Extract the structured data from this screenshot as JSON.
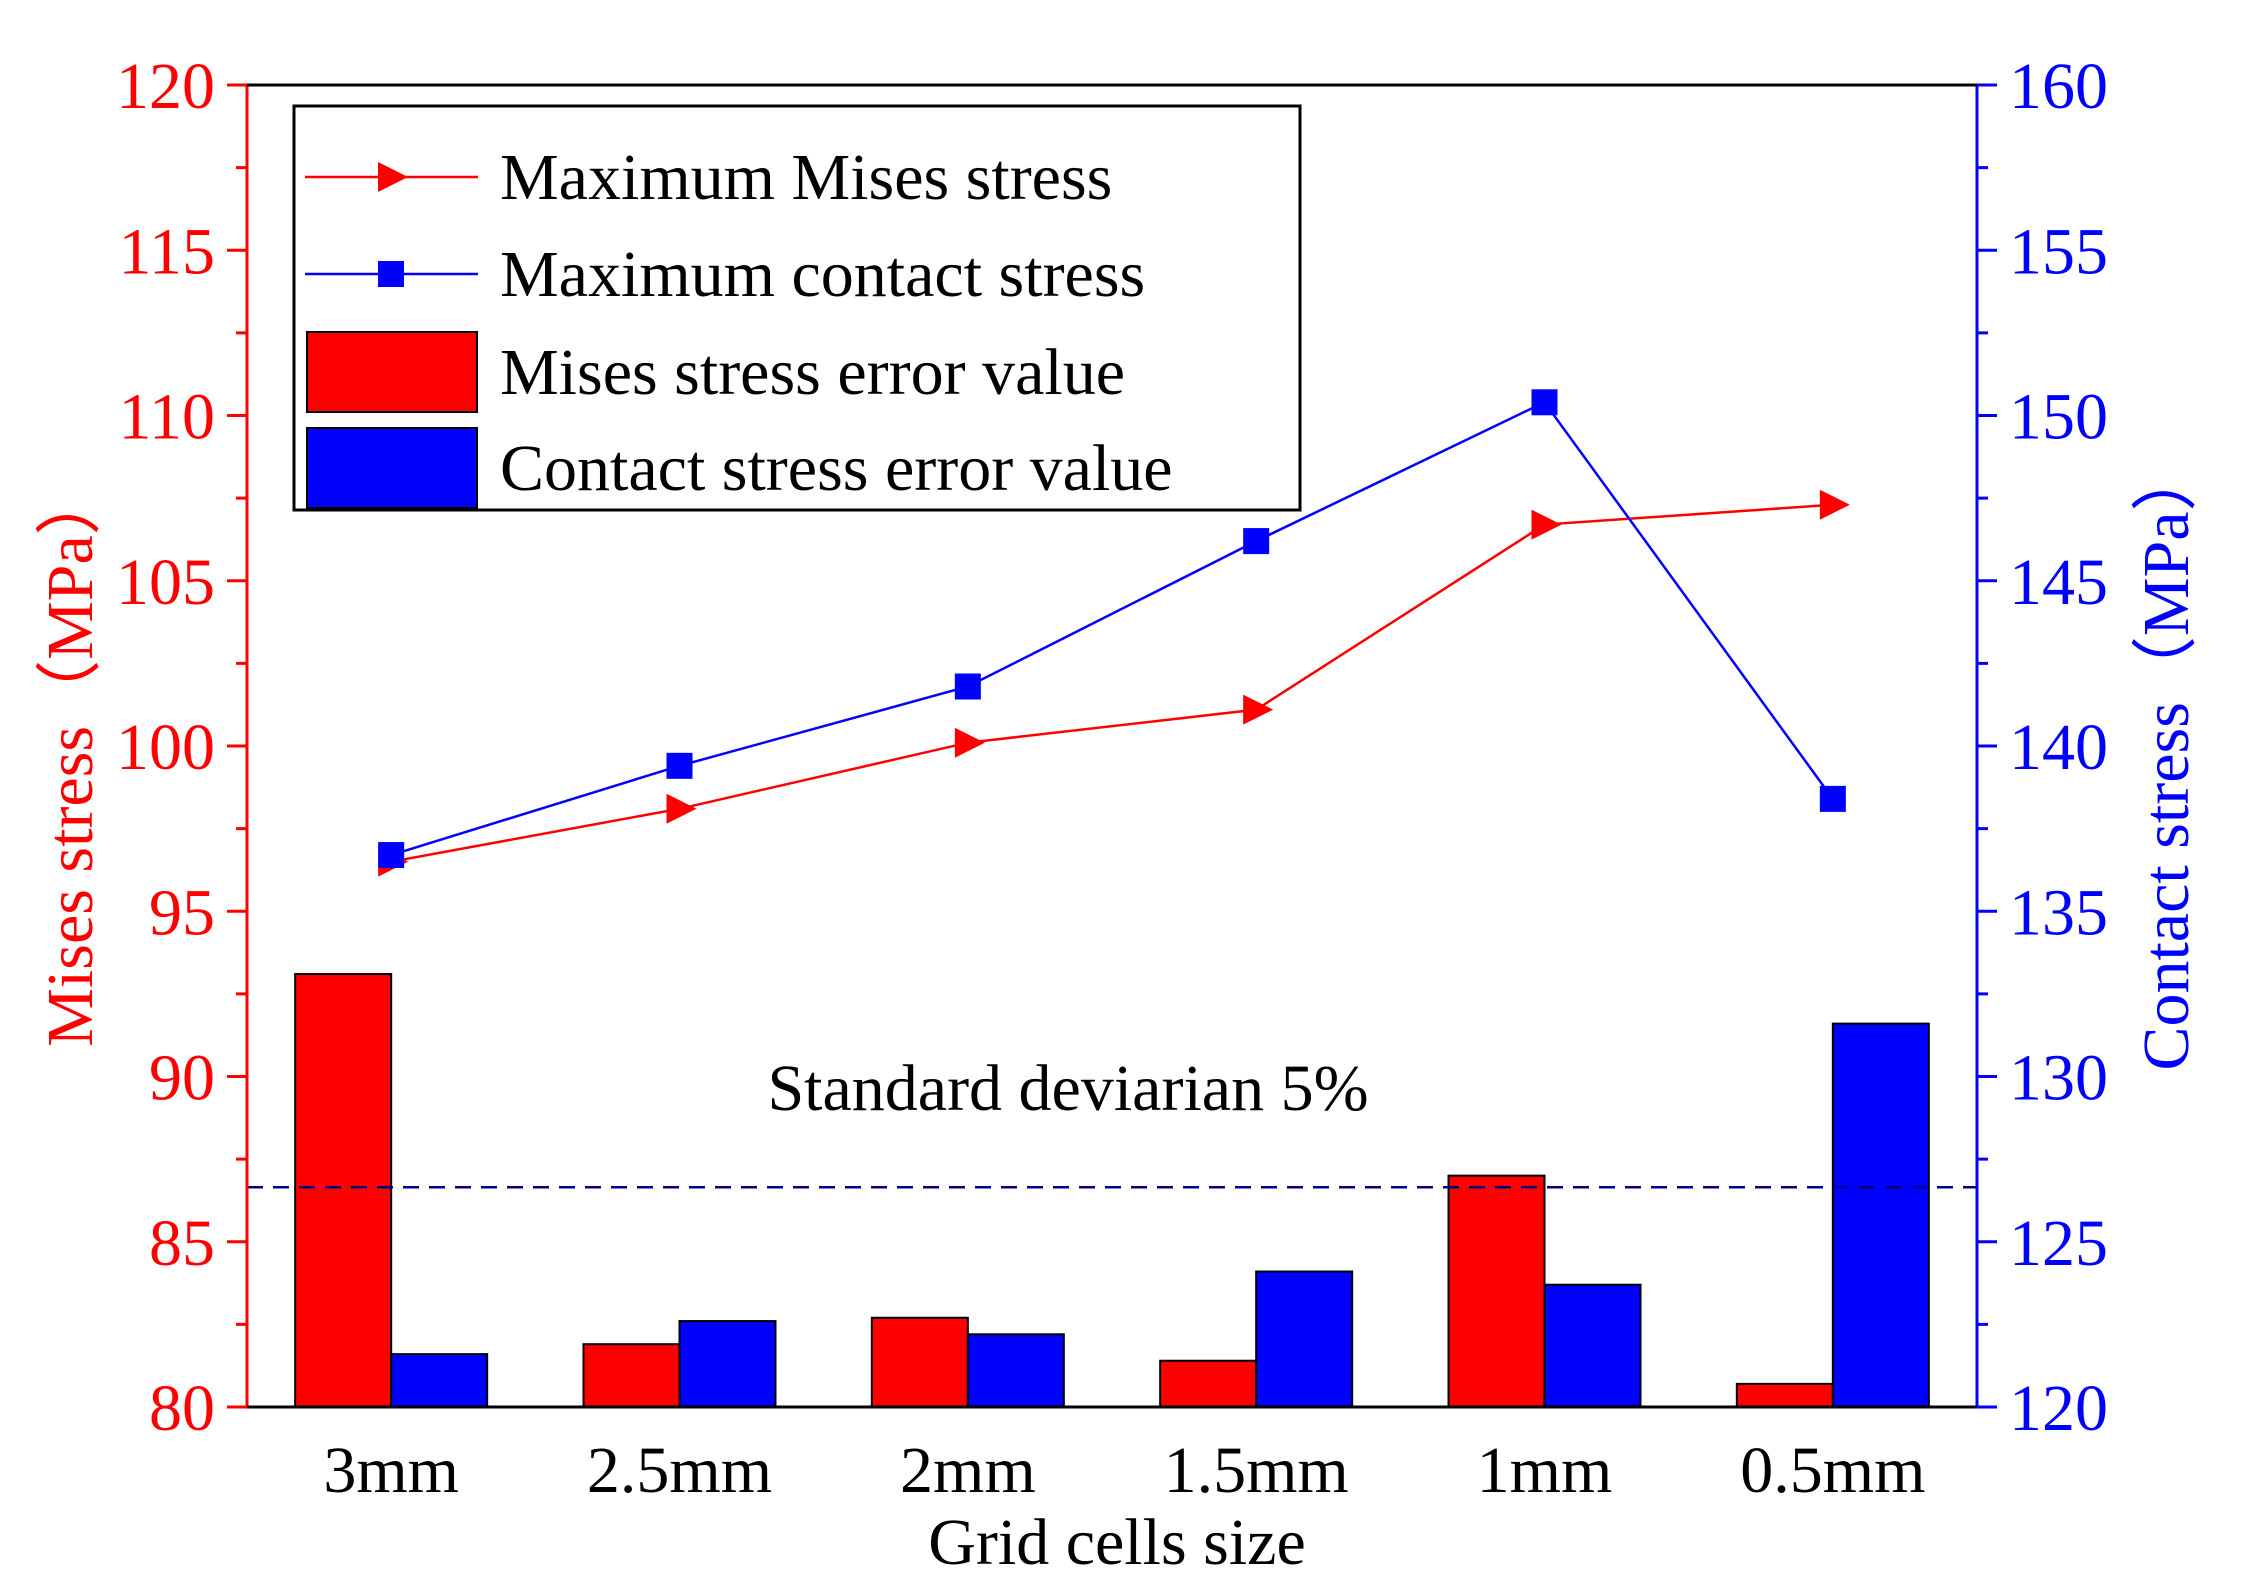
{
  "chart_data": {
    "type": "bar+line",
    "categories": [
      "3mm",
      "2.5mm",
      "2mm",
      "1.5mm",
      "1mm",
      "0.5mm"
    ],
    "xlabel": "Grid cells size",
    "ylabel_left": "Mises stress（MPa）",
    "ylabel_right": "Contact stress（MPa）",
    "ylim_left": [
      80,
      120
    ],
    "ylim_right": [
      120,
      160
    ],
    "yticks_left": [
      80,
      85,
      90,
      95,
      100,
      105,
      110,
      115,
      120
    ],
    "yticks_right": [
      120,
      125,
      130,
      135,
      140,
      145,
      150,
      155,
      160
    ],
    "line_series": [
      {
        "name": "Maximum Mises stress",
        "axis": "left",
        "color": "#ff0000",
        "marker": "triangle-right",
        "values": [
          96.5,
          98.1,
          100.1,
          101.1,
          106.7,
          107.3
        ]
      },
      {
        "name": "Maximum contact stress",
        "axis": "right",
        "color": "#0000ff",
        "marker": "square",
        "values": [
          136.7,
          139.4,
          141.8,
          146.2,
          150.4,
          138.4
        ]
      }
    ],
    "bar_series": [
      {
        "name": "Mises stress error value",
        "axis": "left",
        "color": "#ff0000",
        "values": [
          93.1,
          81.9,
          82.7,
          81.4,
          87.0,
          80.7
        ]
      },
      {
        "name": "Contact stress error value",
        "axis": "left",
        "color": "#0000ff",
        "values": [
          81.6,
          82.6,
          82.2,
          84.1,
          83.7,
          91.6
        ]
      }
    ],
    "reference_line": {
      "label": "Standard deviarian 5%",
      "value": 86.65,
      "axis": "left",
      "color": "#000080",
      "style": "dashed"
    },
    "legend_position": "top-left",
    "grid": false,
    "colors": {
      "left_axis": "#ff0000",
      "right_axis": "#0000ff",
      "frame": "#000000"
    }
  }
}
